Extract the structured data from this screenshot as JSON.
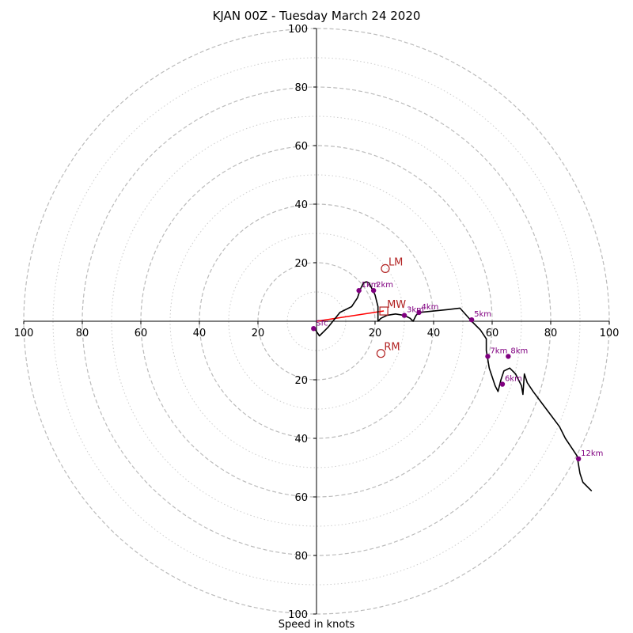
{
  "chart_data": {
    "type": "line",
    "title": "KJAN 00Z - Tuesday March 24 2020",
    "xlabel": "Speed in knots",
    "axis_range": [
      -100,
      100
    ],
    "tick_labels": [
      "100",
      "80",
      "60",
      "40",
      "20",
      "20",
      "40",
      "60",
      "80",
      "100"
    ],
    "rings_dashed": [
      20,
      40,
      60,
      80,
      100
    ],
    "rings_dotted": [
      10,
      30,
      50,
      70,
      90
    ],
    "grid": true,
    "colors": {
      "trace": "#000000",
      "markers": "#800080",
      "motion": "#b22222",
      "mean_wind_vector": "#ff0000",
      "rings": "#bbbbbb"
    },
    "hodograph": {
      "u": [
        -1,
        1,
        4,
        8,
        12,
        14,
        15,
        16,
        17,
        18,
        19,
        20,
        21,
        21,
        22,
        24,
        27,
        30,
        32,
        33,
        34,
        35,
        40,
        45,
        49,
        53,
        56,
        58,
        58,
        58.5,
        59,
        60,
        61,
        62,
        63,
        64,
        66,
        68,
        69,
        70,
        70.5,
        71,
        72,
        74,
        77,
        80,
        83,
        85,
        87,
        89,
        90,
        91,
        93,
        94
      ],
      "v": [
        -2,
        -5,
        -2,
        3,
        5,
        8,
        11,
        13,
        13.5,
        13,
        11,
        9,
        5,
        0,
        1,
        2,
        2.5,
        2,
        1,
        0,
        2,
        3,
        3.5,
        4,
        4.5,
        0,
        -3,
        -6,
        -10,
        -13,
        -16,
        -19,
        -22,
        -24,
        -20,
        -17,
        -16,
        -18,
        -20,
        -22,
        -25,
        -18,
        -21,
        -24,
        -28,
        -32,
        -36,
        -40,
        -43,
        -46,
        -52,
        -55,
        -57,
        -58
      ]
    },
    "height_markers": [
      {
        "label": "Sfc",
        "u": -1,
        "v": -2.5
      },
      {
        "label": "1km",
        "u": 14.5,
        "v": 10.5
      },
      {
        "label": "2km",
        "u": 19.5,
        "v": 10.5
      },
      {
        "label": "3km",
        "u": 30,
        "v": 2
      },
      {
        "label": "4km",
        "u": 35,
        "v": 3
      },
      {
        "label": "5km",
        "u": 53,
        "v": 0.5
      },
      {
        "label": "6km",
        "u": 63.5,
        "v": -21.5
      },
      {
        "label": "7km",
        "u": 58.5,
        "v": -12
      },
      {
        "label": "8km",
        "u": 65.5,
        "v": -12
      },
      {
        "label": "12km",
        "u": 89.5,
        "v": -47
      }
    ],
    "storm_motion": [
      {
        "label": "LM",
        "u": 23.5,
        "v": 18,
        "shape": "circle"
      },
      {
        "label": "RM",
        "u": 22,
        "v": -11,
        "shape": "circle"
      },
      {
        "label": "MW",
        "u": 23,
        "v": 3.5,
        "shape": "square"
      }
    ],
    "mean_wind_vector": {
      "from": [
        0,
        0
      ],
      "to": [
        23,
        3.5
      ]
    }
  }
}
